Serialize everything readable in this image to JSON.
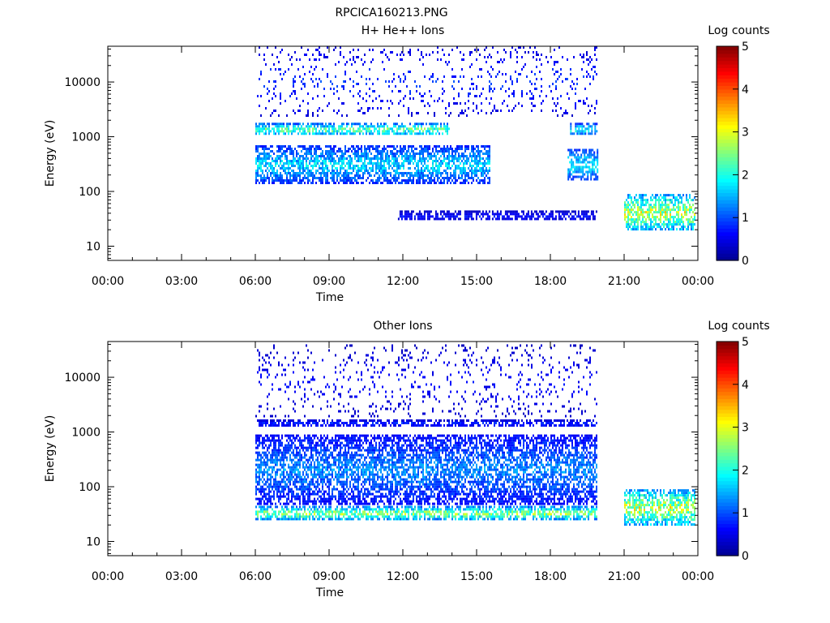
{
  "figure_title": "RPCICA160213.PNG",
  "colors": {
    "colormap": [
      "#00008f",
      "#0000ff",
      "#0080ff",
      "#00ffff",
      "#80ff80",
      "#ffff00",
      "#ff8000",
      "#ff0000",
      "#800000"
    ]
  },
  "chart_data": [
    {
      "type": "heatmap",
      "title": "H+ He++ Ions",
      "xlabel": "Time",
      "ylabel": "Energy (eV)",
      "yscale": "log",
      "xlim": [
        0,
        24
      ],
      "ylim": [
        5.5,
        45000
      ],
      "x_tick_labels": [
        "00:00",
        "03:00",
        "06:00",
        "09:00",
        "12:00",
        "15:00",
        "18:00",
        "21:00",
        "00:00"
      ],
      "x_ticks_hours": [
        0,
        3,
        6,
        9,
        12,
        15,
        18,
        21,
        24
      ],
      "y_ticks": [
        10,
        100,
        1000,
        10000
      ],
      "y_tick_labels": [
        "10",
        "100",
        "1000",
        "10000"
      ],
      "colorbar": {
        "label": "Log counts",
        "range": [
          0,
          5
        ],
        "ticks": [
          0,
          1,
          2,
          3,
          4,
          5
        ]
      },
      "features": [
        {
          "name": "sparse high-energy counts",
          "t_start": 6.0,
          "t_end": 19.9,
          "e_min": 2500,
          "e_max": 45000,
          "log_counts": 0.8
        },
        {
          "name": "band ~1500 eV",
          "t_start": 6.0,
          "t_end": 13.9,
          "e_min": 1100,
          "e_max": 1800,
          "log_counts": 2.2
        },
        {
          "name": "band ~1500 eV (late)",
          "t_start": 18.8,
          "t_end": 19.9,
          "e_min": 1100,
          "e_max": 1800,
          "log_counts": 1.8
        },
        {
          "name": "band 150-600 eV",
          "t_start": 6.0,
          "t_end": 15.5,
          "e_min": 150,
          "e_max": 700,
          "log_counts": 1.6
        },
        {
          "name": "band 150-600 eV (late)",
          "t_start": 18.7,
          "t_end": 19.9,
          "e_min": 170,
          "e_max": 600,
          "log_counts": 1.7
        },
        {
          "name": "band ~35 eV",
          "t_start": 11.8,
          "t_end": 19.9,
          "e_min": 30,
          "e_max": 45,
          "log_counts": 0.6
        },
        {
          "name": "low-energy band",
          "t_start": 21.0,
          "t_end": 23.9,
          "e_min": 20,
          "e_max": 90,
          "log_counts": 2.6
        }
      ]
    },
    {
      "type": "heatmap",
      "title": "Other Ions",
      "xlabel": "Time",
      "ylabel": "Energy (eV)",
      "yscale": "log",
      "xlim": [
        0,
        24
      ],
      "ylim": [
        5.5,
        45000
      ],
      "x_tick_labels": [
        "00:00",
        "03:00",
        "06:00",
        "09:00",
        "12:00",
        "15:00",
        "18:00",
        "21:00",
        "00:00"
      ],
      "x_ticks_hours": [
        0,
        3,
        6,
        9,
        12,
        15,
        18,
        21,
        24
      ],
      "y_ticks": [
        10,
        100,
        1000,
        10000
      ],
      "y_tick_labels": [
        "10",
        "100",
        "1000",
        "10000"
      ],
      "colorbar": {
        "label": "Log counts",
        "range": [
          0,
          5
        ],
        "ticks": [
          0,
          1,
          2,
          3,
          4,
          5
        ]
      },
      "features": [
        {
          "name": "sparse high-energy counts",
          "t_start": 6.0,
          "t_end": 19.9,
          "e_min": 2000,
          "e_max": 40000,
          "log_counts": 0.6
        },
        {
          "name": "band ~1500 eV",
          "t_start": 6.0,
          "t_end": 19.9,
          "e_min": 1300,
          "e_max": 1700,
          "log_counts": 0.8
        },
        {
          "name": "broad band 50-1000 eV",
          "t_start": 6.0,
          "t_end": 19.9,
          "e_min": 50,
          "e_max": 900,
          "log_counts": 1.2
        },
        {
          "name": "intense band ~35 eV",
          "t_start": 6.0,
          "t_end": 19.9,
          "e_min": 26,
          "e_max": 45,
          "log_counts": 2.4
        },
        {
          "name": "low-energy band",
          "t_start": 21.0,
          "t_end": 23.9,
          "e_min": 20,
          "e_max": 90,
          "log_counts": 2.6
        }
      ]
    }
  ]
}
